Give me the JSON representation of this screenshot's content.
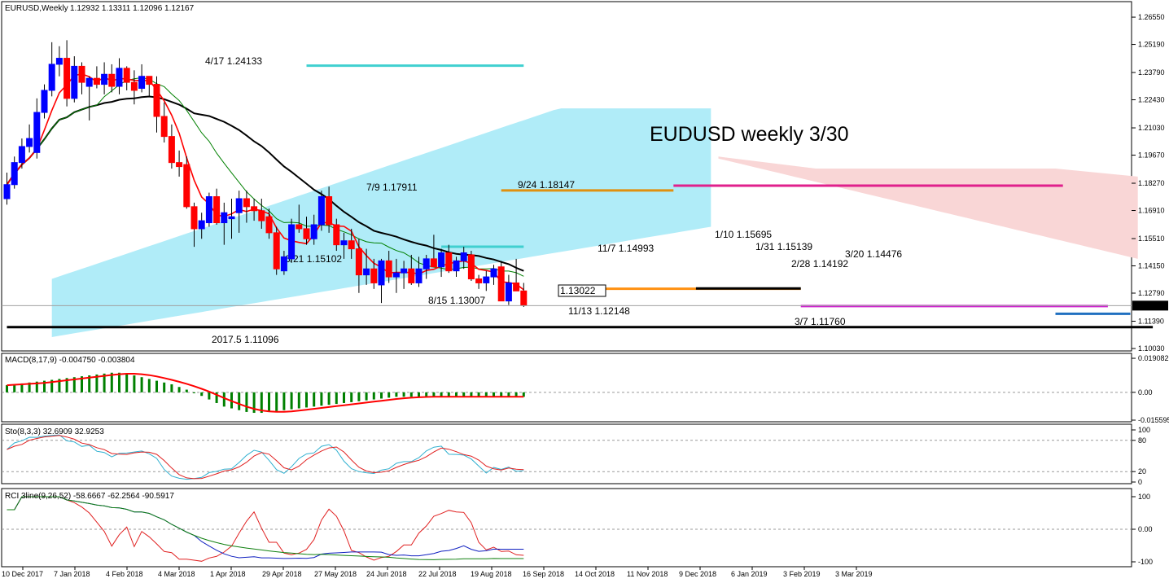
{
  "header": {
    "symbol": "EURUSD,Weekly",
    "ohlc": "1.12932 1.13311 1.12096 1.12167"
  },
  "chart_data": [
    {
      "type": "candlestick",
      "title": "EUDUSD weekly 3/30",
      "ylim": [
        1.1003,
        1.2708
      ],
      "price_ticks": [
        "1.26550",
        "1.25190",
        "1.23790",
        "1.22430",
        "1.21030",
        "1.19670",
        "1.18270",
        "1.16910",
        "1.15510",
        "1.14150",
        "1.12790",
        "1.11390",
        "1.10030"
      ],
      "current_price": "1.12167",
      "x_labels": [
        "10 Dec 2017",
        "7 Jan 2018",
        "4 Feb 2018",
        "4 Mar 2018",
        "1 Apr 2018",
        "29 Apr 2018",
        "27 May 2018",
        "24 Jun 2018",
        "22 Jul 2018",
        "19 Aug 2018",
        "16 Sep 2018",
        "14 Oct 2018",
        "11 Nov 2018",
        "9 Dec 2018",
        "6 Jan 2019",
        "3 Feb 2019",
        "3 Mar 2019"
      ],
      "candles": [
        [
          1.175,
          1.188,
          1.172,
          1.182
        ],
        [
          1.182,
          1.196,
          1.18,
          1.193
        ],
        [
          1.193,
          1.205,
          1.19,
          1.201
        ],
        [
          1.201,
          1.212,
          1.198,
          1.205
        ],
        [
          1.198,
          1.225,
          1.195,
          1.218
        ],
        [
          1.218,
          1.232,
          1.215,
          1.229
        ],
        [
          1.229,
          1.253,
          1.226,
          1.242
        ],
        [
          1.242,
          1.251,
          1.236,
          1.245
        ],
        [
          1.245,
          1.254,
          1.221,
          1.225
        ],
        [
          1.225,
          1.246,
          1.223,
          1.241
        ],
        [
          1.241,
          1.243,
          1.227,
          1.233
        ],
        [
          1.231,
          1.236,
          1.214,
          1.235
        ],
        [
          1.235,
          1.241,
          1.23,
          1.232
        ],
        [
          1.232,
          1.243,
          1.227,
          1.237
        ],
        [
          1.237,
          1.242,
          1.228,
          1.231
        ],
        [
          1.231,
          1.245,
          1.227,
          1.24
        ],
        [
          1.24,
          1.241,
          1.229,
          1.233
        ],
        [
          1.233,
          1.239,
          1.222,
          1.229
        ],
        [
          1.23,
          1.242,
          1.228,
          1.236
        ],
        [
          1.236,
          1.236,
          1.226,
          1.232
        ],
        [
          1.232,
          1.236,
          1.208,
          1.216
        ],
        [
          1.216,
          1.223,
          1.203,
          1.206
        ],
        [
          1.206,
          1.212,
          1.19,
          1.193
        ],
        [
          1.193,
          1.199,
          1.186,
          1.191
        ],
        [
          1.192,
          1.196,
          1.17,
          1.171
        ],
        [
          1.171,
          1.173,
          1.151,
          1.16
        ],
        [
          1.16,
          1.168,
          1.155,
          1.164
        ],
        [
          1.163,
          1.178,
          1.161,
          1.176
        ],
        [
          1.176,
          1.18,
          1.162,
          1.163
        ],
        [
          1.163,
          1.173,
          1.152,
          1.168
        ],
        [
          1.165,
          1.175,
          1.155,
          1.166
        ],
        [
          1.168,
          1.179,
          1.158,
          1.175
        ],
        [
          1.175,
          1.179,
          1.163,
          1.171
        ],
        [
          1.171,
          1.175,
          1.164,
          1.169
        ],
        [
          1.169,
          1.175,
          1.16,
          1.164
        ],
        [
          1.166,
          1.17,
          1.155,
          1.158
        ],
        [
          1.158,
          1.161,
          1.137,
          1.14
        ],
        [
          1.139,
          1.149,
          1.137,
          1.146
        ],
        [
          1.145,
          1.165,
          1.143,
          1.162
        ],
        [
          1.162,
          1.172,
          1.158,
          1.16
        ],
        [
          1.16,
          1.166,
          1.152,
          1.155
        ],
        [
          1.155,
          1.167,
          1.152,
          1.162
        ],
        [
          1.162,
          1.179,
          1.159,
          1.176
        ],
        [
          1.176,
          1.181,
          1.158,
          1.162
        ],
        [
          1.162,
          1.165,
          1.149,
          1.152
        ],
        [
          1.152,
          1.158,
          1.145,
          1.154
        ],
        [
          1.154,
          1.16,
          1.145,
          1.15
        ],
        [
          1.15,
          1.155,
          1.128,
          1.137
        ],
        [
          1.137,
          1.15,
          1.132,
          1.14
        ],
        [
          1.14,
          1.145,
          1.13,
          1.133
        ],
        [
          1.132,
          1.145,
          1.123,
          1.144
        ],
        [
          1.144,
          1.149,
          1.133,
          1.136
        ],
        [
          1.136,
          1.145,
          1.128,
          1.138
        ],
        [
          1.138,
          1.144,
          1.13,
          1.14
        ],
        [
          1.14,
          1.147,
          1.132,
          1.133
        ],
        [
          1.133,
          1.146,
          1.131,
          1.14
        ],
        [
          1.14,
          1.147,
          1.135,
          1.145
        ],
        [
          1.145,
          1.157,
          1.141,
          1.141
        ],
        [
          1.141,
          1.15,
          1.136,
          1.148
        ],
        [
          1.148,
          1.152,
          1.138,
          1.139
        ],
        [
          1.139,
          1.146,
          1.136,
          1.144
        ],
        [
          1.144,
          1.151,
          1.14,
          1.148
        ],
        [
          1.147,
          1.149,
          1.134,
          1.135
        ],
        [
          1.135,
          1.137,
          1.13,
          1.133
        ],
        [
          1.133,
          1.139,
          1.129,
          1.136
        ],
        [
          1.136,
          1.142,
          1.132,
          1.14
        ],
        [
          1.141,
          1.144,
          1.124,
          1.124
        ],
        [
          1.124,
          1.137,
          1.122,
          1.133
        ],
        [
          1.133,
          1.145,
          1.129,
          1.129
        ],
        [
          1.129,
          1.133,
          1.121,
          1.122
        ]
      ],
      "price_lines": [
        {
          "label": "4/17 1.24133",
          "value": 1.24133,
          "from": 40,
          "to": 69,
          "color": "#40d0d0"
        },
        {
          "label": "6/21 1.15102",
          "value": 1.15102,
          "from": 58,
          "to": 69,
          "color": "#40d0d0"
        },
        {
          "label": "7/9 1.17911",
          "value": 1.17911,
          "from": 66,
          "to": 89,
          "color": "#e09010"
        },
        {
          "label": "8/15 1.13007",
          "value": 1.13007,
          "from": 76,
          "to": 106,
          "color": "#ff9010"
        },
        {
          "label": "9/24 1.18147",
          "value": 1.18147,
          "from": 89,
          "to": 141,
          "color": "#e0208c"
        },
        {
          "label": "1.13022",
          "value": 1.13022,
          "from": 92,
          "to": 106,
          "color": "#000000"
        },
        {
          "label": "11/13 1.12148",
          "value": 1.12148,
          "from": 106,
          "to": 147,
          "color": "#d020d0"
        },
        {
          "label": "3/7 1.11760",
          "value": 1.1176,
          "from": 140,
          "to": 150,
          "color": "#2070c0"
        },
        {
          "label": "2017.5  1.11096",
          "value": 1.11096,
          "from": 0,
          "to": 153,
          "color": "#000000"
        }
      ],
      "markers": [
        {
          "label": "11/7 1.14993",
          "value": 1.14993
        },
        {
          "label": "1/10 1.15695",
          "value": 1.15695
        },
        {
          "label": "1/31 1.15139",
          "value": 1.15139
        },
        {
          "label": "2/28 1.14192",
          "value": 1.14192
        },
        {
          "label": "3/20 1.14476",
          "value": 1.14476
        }
      ],
      "colors": {
        "up": "#0000ff",
        "down": "#ff0000",
        "ma_fast": "#ff0000",
        "ma_mid": "#008000",
        "ma_slow": "#000000",
        "cloud_bull": "#b0ecf8",
        "cloud_bear": "#f9d6d6"
      }
    },
    {
      "type": "macd",
      "label": "MACD(8,17,9) -0.004750 -0.003804",
      "ticks": [
        "0.019082",
        "0.00",
        "-0.015595"
      ],
      "ylim": [
        -0.0156,
        0.0191
      ],
      "histogram": [
        0.004,
        0.0045,
        0.005,
        0.0055,
        0.006,
        0.0065,
        0.007,
        0.0075,
        0.008,
        0.0085,
        0.009,
        0.0095,
        0.01,
        0.0105,
        0.011,
        0.011,
        0.0105,
        0.0095,
        0.0085,
        0.0075,
        0.0065,
        0.0055,
        0.0045,
        0.003,
        0.0015,
        -0.0005,
        -0.002,
        -0.004,
        -0.006,
        -0.008,
        -0.009,
        -0.01,
        -0.011,
        -0.0115,
        -0.0115,
        -0.011,
        -0.0105,
        -0.01,
        -0.0095,
        -0.009,
        -0.0085,
        -0.008,
        -0.0075,
        -0.007,
        -0.0065,
        -0.006,
        -0.0055,
        -0.005,
        -0.0045,
        -0.004,
        -0.0035,
        -0.003,
        -0.0025,
        -0.0025,
        -0.0025,
        -0.0025,
        -0.0025,
        -0.0025,
        -0.0025,
        -0.0025,
        -0.0025,
        -0.0025,
        -0.0025,
        -0.0025,
        -0.0025,
        -0.0025,
        -0.0025,
        -0.0025,
        -0.0025,
        -0.0025
      ]
    },
    {
      "type": "stochastic",
      "label": "Sto(8,3,3) 32.6909 32.9253",
      "ticks": [
        "100",
        "80",
        "20",
        "0"
      ],
      "ylim": [
        0,
        100
      ]
    },
    {
      "type": "rci",
      "label": "RCI 3line(9,26,52) -58.6667 -62.2564 -90.5917",
      "ticks": [
        "100",
        "0.00",
        "-100"
      ],
      "ylim": [
        -100,
        100
      ]
    }
  ]
}
